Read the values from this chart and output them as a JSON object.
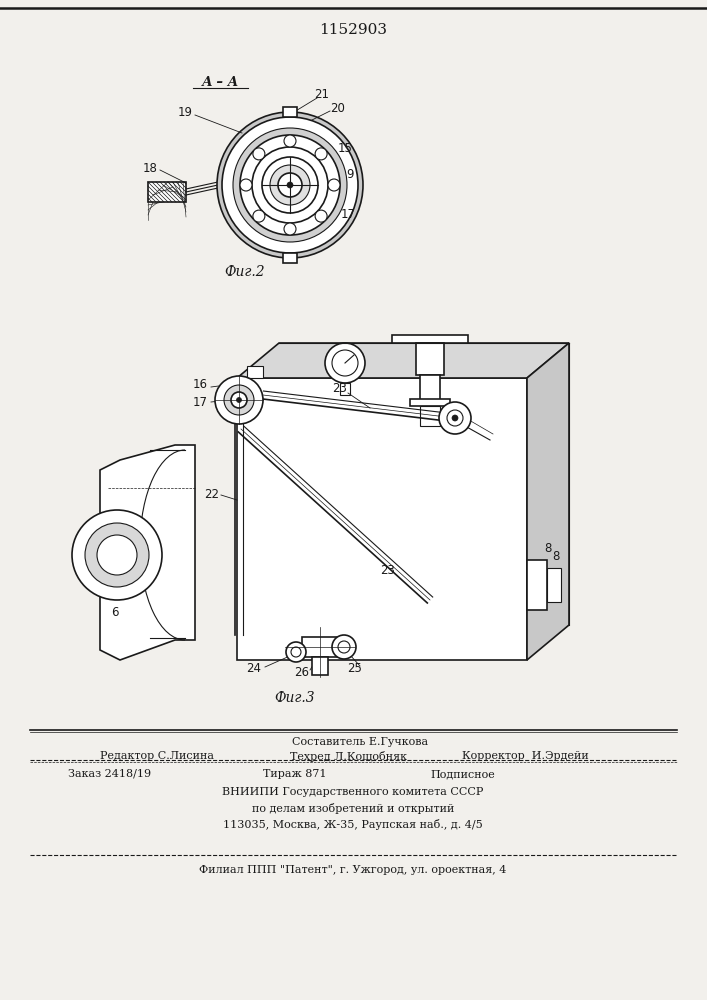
{
  "patent_number": "1152903",
  "fig2_label": "Фиг.2",
  "fig3_label": "Фиг.3",
  "section_label": "А – А",
  "footer_line0": "Составитель Е.Гучкова",
  "footer_line1a": "Редактор С.Лисина",
  "footer_line1b": "Техред Л.Кощобняк",
  "footer_line1c": "Корректор  И.Эрдейи",
  "footer_line2a": "Заказ 2418/19",
  "footer_line2b": "Тираж 871",
  "footer_line2c": "Подписное",
  "footer_line3": "ВНИИПИ Государственного комитета СССР",
  "footer_line4": "по делам изобретений и открытий",
  "footer_line5": "113035, Москва, Ж-35, Раупская наб., д. 4/5",
  "footer_line6": "Филиал ППП \"Патент\", г. Ужгород, ул. ороектная, 4",
  "bg_color": "#f2f0ec",
  "lc": "#1a1a1a"
}
